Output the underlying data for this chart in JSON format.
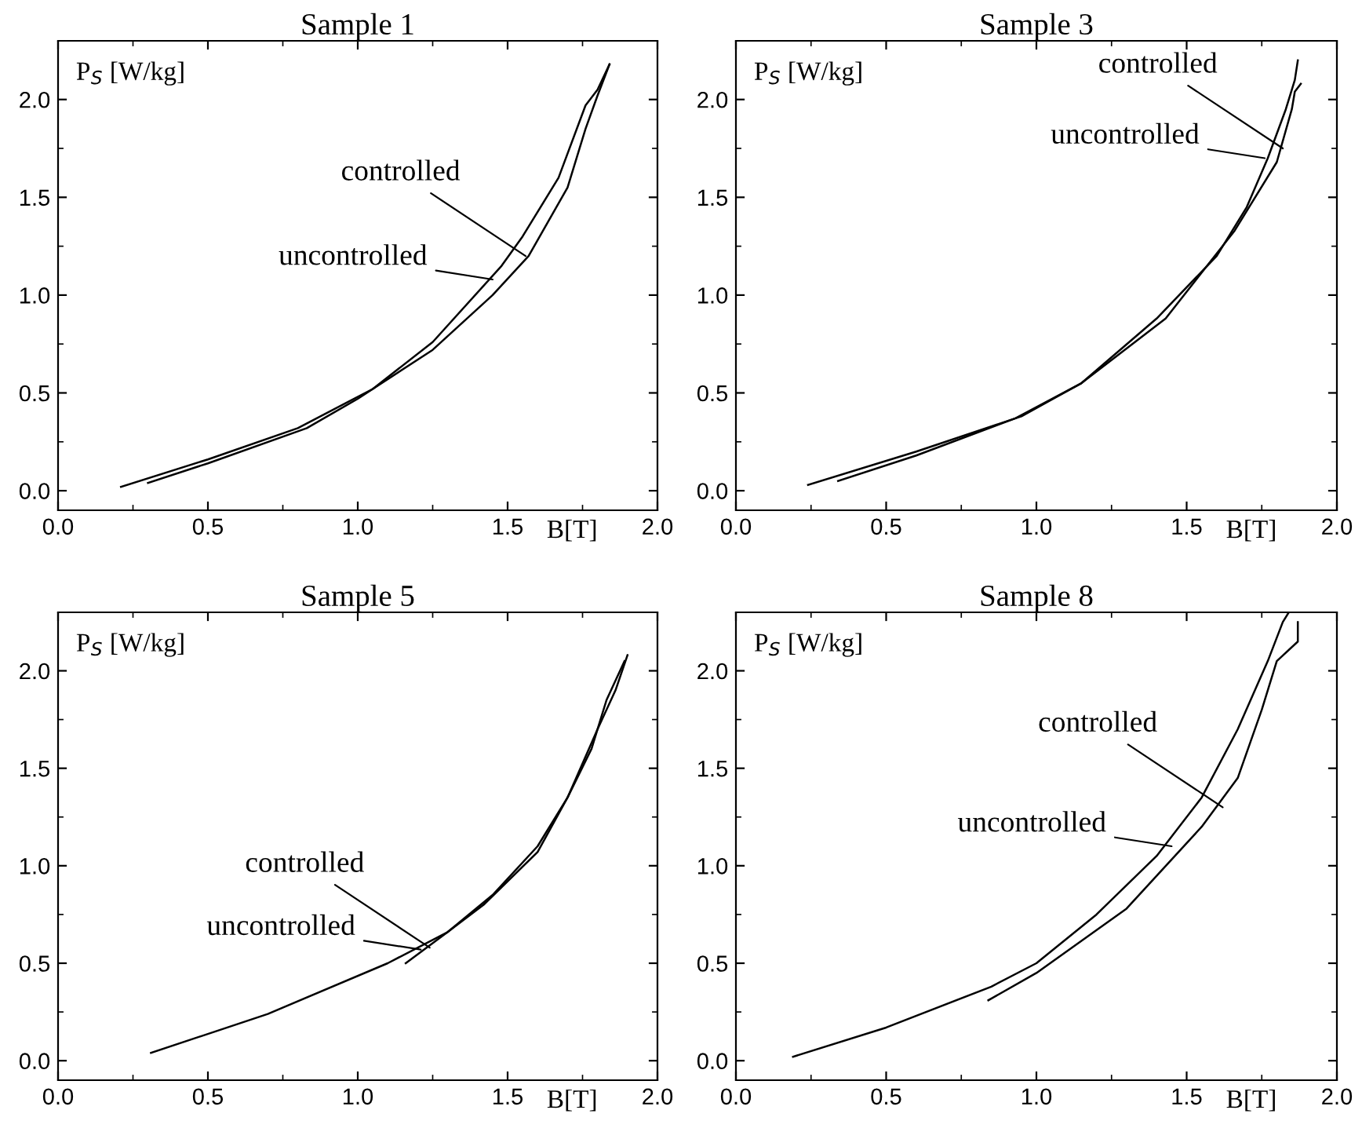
{
  "chart_data": [
    {
      "type": "line",
      "title": "Sample 1",
      "xlabel": "B[T]",
      "ylabel": "P$_{S}$ [W/kg]",
      "xlim": [
        0,
        2.0
      ],
      "ylim": [
        -0.1,
        2.3
      ],
      "xticks": [
        {
          "value": 0,
          "label": "0.0"
        },
        {
          "value": 0.5,
          "label": "0.5"
        },
        {
          "value": 1,
          "label": "1.0"
        },
        {
          "value": 1.5,
          "label": "1.5"
        },
        {
          "value": 2,
          "label": "2.0"
        }
      ],
      "yticks": [
        {
          "value": 0,
          "label": "0.0"
        },
        {
          "value": 0.5,
          "label": "0.5"
        },
        {
          "value": 1,
          "label": "1.0"
        },
        {
          "value": 1.5,
          "label": "1.5"
        },
        {
          "value": 2,
          "label": "2.0"
        }
      ],
      "grid": false,
      "line_style": "solid",
      "marker": "none",
      "series": [
        {
          "color": "#000000",
          "x": [
            0.21,
            0.5,
            0.8,
            1.05,
            1.25,
            1.48,
            1.55,
            1.67,
            1.76,
            1.8,
            1.84
          ],
          "values": [
            0.02,
            0.16,
            0.32,
            0.52,
            0.76,
            1.15,
            1.3,
            1.6,
            1.97,
            2.05,
            2.18
          ]
        },
        {
          "color": "#000000",
          "x": [
            0.3,
            0.5,
            0.83,
            1.0,
            1.25,
            1.45,
            1.57,
            1.7,
            1.76,
            1.8,
            1.84
          ],
          "values": [
            0.04,
            0.14,
            0.32,
            0.47,
            0.72,
            1.0,
            1.2,
            1.55,
            1.85,
            2.02,
            2.18
          ]
        }
      ],
      "annotations": [
        {
          "text": "controlled",
          "x": 1.56,
          "y": 1.2
        },
        {
          "text": "uncontrolled",
          "x": 1.45,
          "y": 1.08
        }
      ]
    },
    {
      "type": "line",
      "title": "Sample 3",
      "xlabel": "B[T]",
      "ylabel": "P$_{S}$ [W/kg]",
      "xlim": [
        0,
        2.0
      ],
      "ylim": [
        -0.1,
        2.3
      ],
      "xticks": [
        {
          "value": 0,
          "label": "0.0"
        },
        {
          "value": 0.5,
          "label": "0.5"
        },
        {
          "value": 1,
          "label": "1.0"
        },
        {
          "value": 1.5,
          "label": "1.5"
        },
        {
          "value": 2,
          "label": "2.0"
        }
      ],
      "yticks": [
        {
          "value": 0,
          "label": "0.0"
        },
        {
          "value": 0.5,
          "label": "0.5"
        },
        {
          "value": 1,
          "label": "1.0"
        },
        {
          "value": 1.5,
          "label": "1.5"
        },
        {
          "value": 2,
          "label": "2.0"
        }
      ],
      "grid": false,
      "line_style": "solid",
      "marker": "none",
      "series": [
        {
          "color": "#000000",
          "x": [
            0.24,
            0.6,
            0.95,
            1.15,
            1.4,
            1.6,
            1.7,
            1.77,
            1.83,
            1.86,
            1.87
          ],
          "values": [
            0.03,
            0.2,
            0.38,
            0.55,
            0.88,
            1.2,
            1.45,
            1.7,
            1.95,
            2.1,
            2.2
          ]
        },
        {
          "color": "#000000",
          "x": [
            0.34,
            0.6,
            0.93,
            1.15,
            1.43,
            1.66,
            1.8,
            1.85,
            1.86,
            1.88
          ],
          "values": [
            0.05,
            0.18,
            0.37,
            0.55,
            0.88,
            1.33,
            1.68,
            1.95,
            2.04,
            2.08
          ]
        }
      ],
      "annotations": [
        {
          "text": "controlled",
          "x": 1.82,
          "y": 1.75
        },
        {
          "text": "uncontrolled",
          "x": 1.76,
          "y": 1.7
        }
      ]
    },
    {
      "type": "line",
      "title": "Sample 5",
      "xlabel": "B[T]",
      "ylabel": "P$_{S}$ [W/kg]",
      "xlim": [
        0,
        2.0
      ],
      "ylim": [
        -0.1,
        2.3
      ],
      "xticks": [
        {
          "value": 0,
          "label": "0.0"
        },
        {
          "value": 0.5,
          "label": "0.5"
        },
        {
          "value": 1,
          "label": "1.0"
        },
        {
          "value": 1.5,
          "label": "1.5"
        },
        {
          "value": 2,
          "label": "2.0"
        }
      ],
      "yticks": [
        {
          "value": 0,
          "label": "0.0"
        },
        {
          "value": 0.5,
          "label": "0.5"
        },
        {
          "value": 1,
          "label": "1.0"
        },
        {
          "value": 1.5,
          "label": "1.5"
        },
        {
          "value": 2,
          "label": "2.0"
        }
      ],
      "grid": false,
      "line_style": "solid",
      "marker": "none",
      "series": [
        {
          "color": "#000000",
          "x": [
            0.31,
            0.7,
            1.1,
            1.3,
            1.45,
            1.6,
            1.7,
            1.8,
            1.86,
            1.9
          ],
          "values": [
            0.04,
            0.24,
            0.5,
            0.66,
            0.85,
            1.1,
            1.35,
            1.7,
            1.9,
            2.08
          ]
        },
        {
          "color": "#000000",
          "x": [
            1.16,
            1.3,
            1.42,
            1.6,
            1.7,
            1.78,
            1.83,
            1.89
          ],
          "values": [
            0.5,
            0.66,
            0.8,
            1.07,
            1.35,
            1.6,
            1.85,
            2.05
          ]
        }
      ],
      "annotations": [
        {
          "text": "controlled",
          "x": 1.24,
          "y": 0.58
        },
        {
          "text": "uncontrolled",
          "x": 1.21,
          "y": 0.57
        }
      ]
    },
    {
      "type": "line",
      "title": "Sample 8",
      "xlabel": "B[T]",
      "ylabel": "P$_{S}$ [W/kg]",
      "xlim": [
        0,
        2.0
      ],
      "ylim": [
        -0.1,
        2.3
      ],
      "xticks": [
        {
          "value": 0,
          "label": "0.0"
        },
        {
          "value": 0.5,
          "label": "0.5"
        },
        {
          "value": 1,
          "label": "1.0"
        },
        {
          "value": 1.5,
          "label": "1.5"
        },
        {
          "value": 2,
          "label": "2.0"
        }
      ],
      "yticks": [
        {
          "value": 0,
          "label": "0.0"
        },
        {
          "value": 0.5,
          "label": "0.5"
        },
        {
          "value": 1,
          "label": "1.0"
        },
        {
          "value": 1.5,
          "label": "1.5"
        },
        {
          "value": 2,
          "label": "2.0"
        }
      ],
      "grid": false,
      "line_style": "solid",
      "marker": "none",
      "series": [
        {
          "color": "#000000",
          "x": [
            0.19,
            0.5,
            0.85,
            1.0,
            1.2,
            1.4,
            1.55,
            1.67,
            1.77,
            1.82,
            1.84
          ],
          "values": [
            0.02,
            0.17,
            0.38,
            0.5,
            0.75,
            1.05,
            1.35,
            1.7,
            2.05,
            2.25,
            2.3
          ]
        },
        {
          "color": "#000000",
          "x": [
            0.84,
            1.0,
            1.3,
            1.55,
            1.67,
            1.75,
            1.8,
            1.87,
            1.87
          ],
          "values": [
            0.31,
            0.45,
            0.78,
            1.2,
            1.45,
            1.8,
            2.05,
            2.15,
            2.25
          ]
        }
      ],
      "annotations": [
        {
          "text": "controlled",
          "x": 1.62,
          "y": 1.3
        },
        {
          "text": "uncontrolled",
          "x": 1.45,
          "y": 1.1
        }
      ]
    }
  ]
}
